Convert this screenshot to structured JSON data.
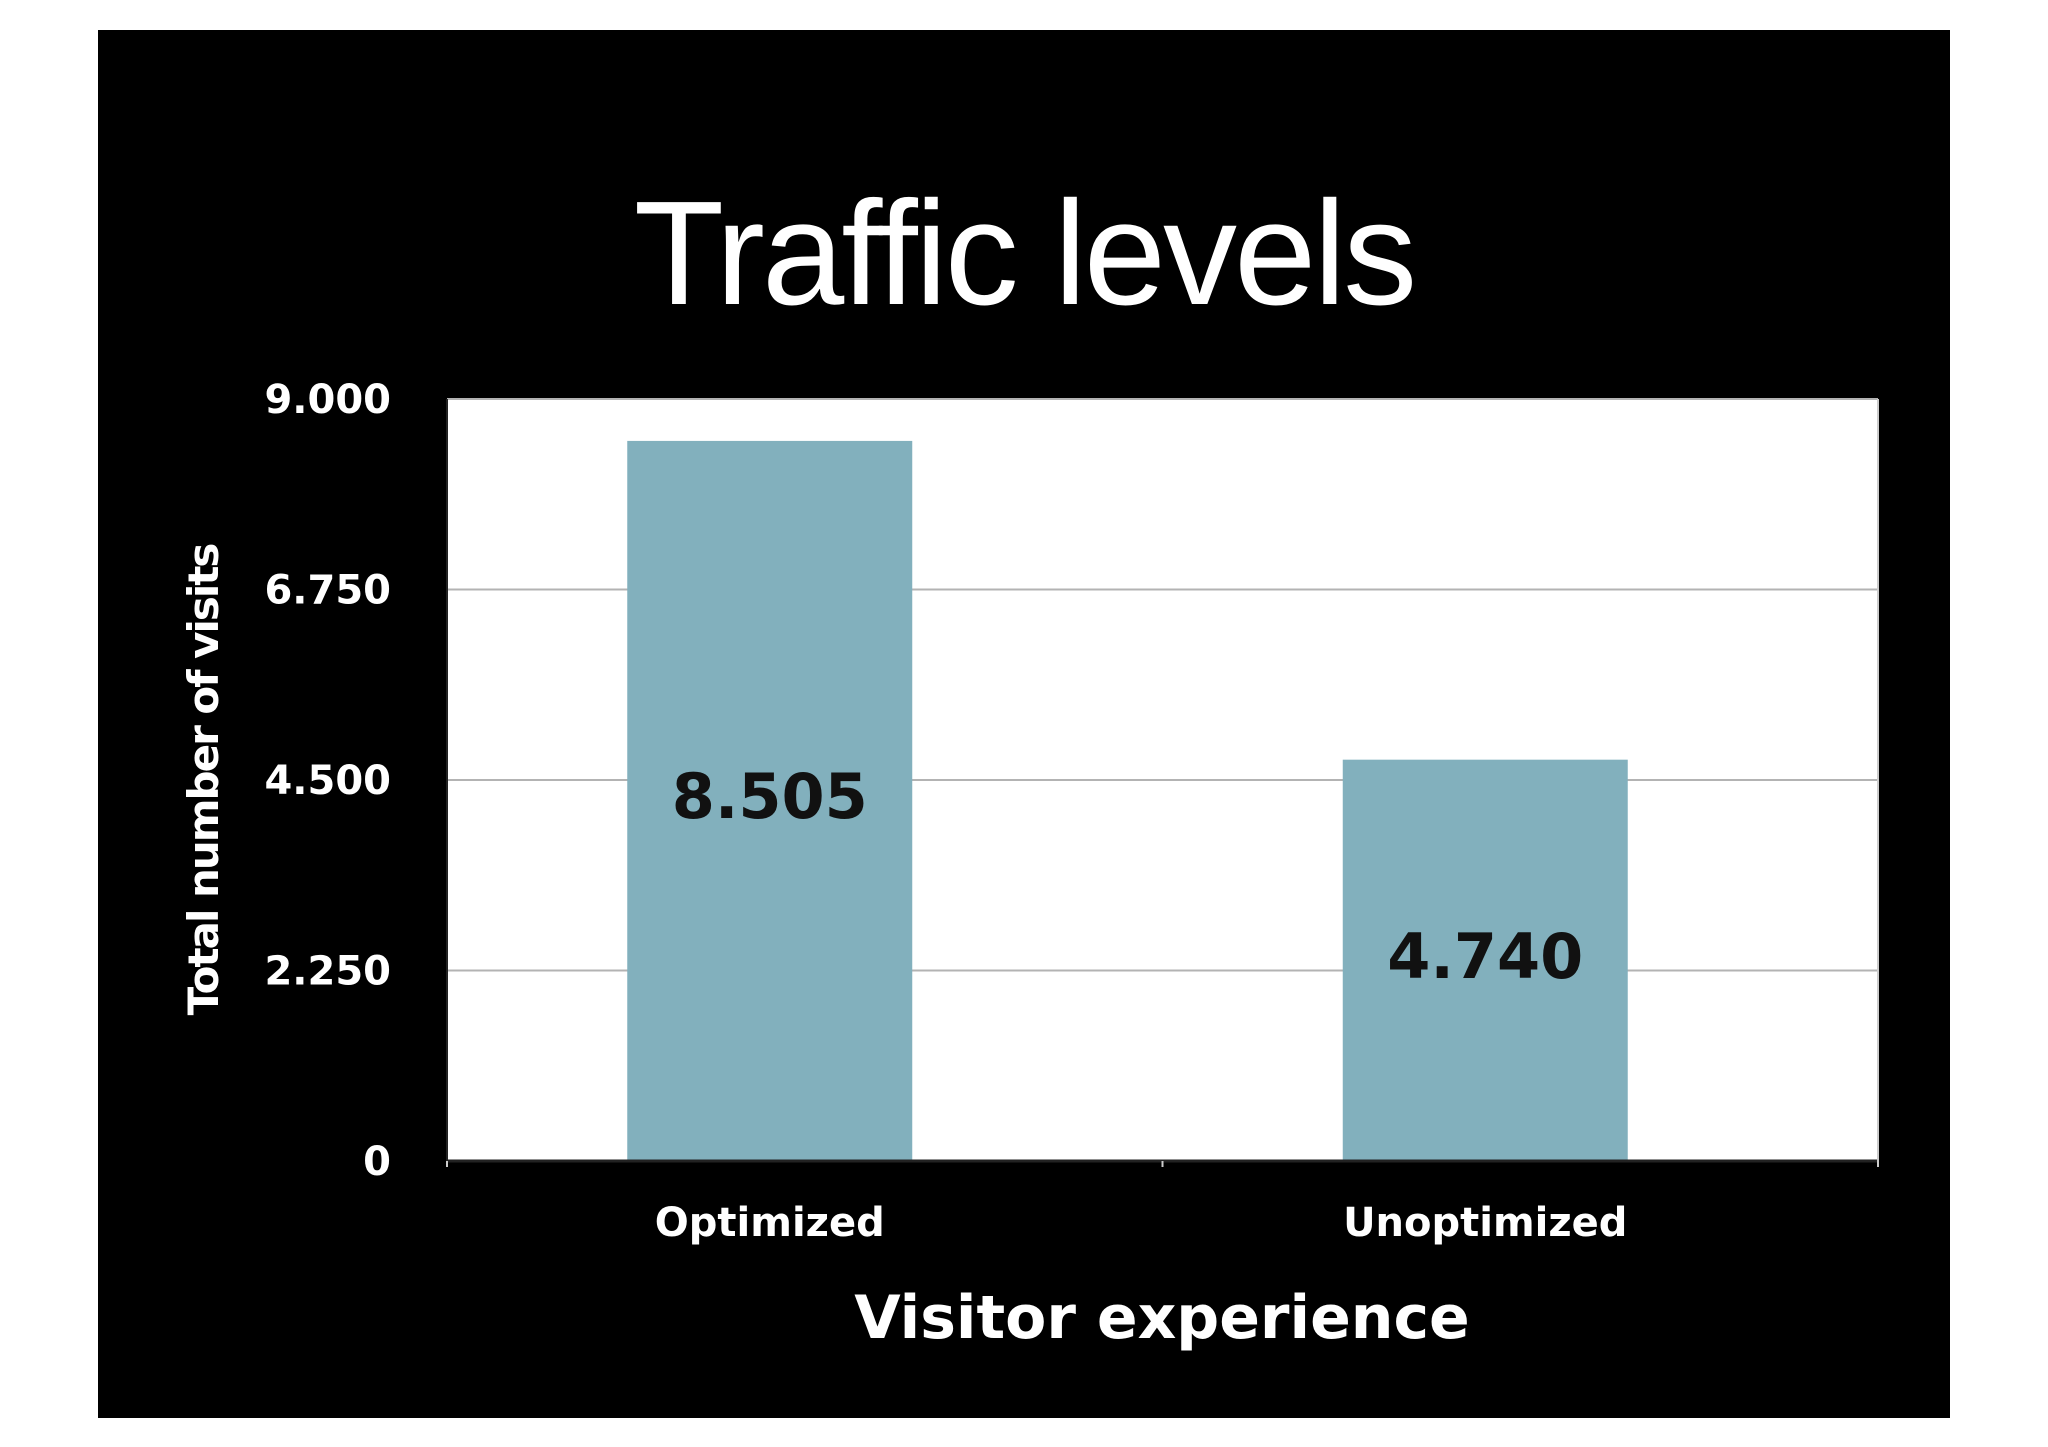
{
  "chart_data": {
    "type": "bar",
    "title": "Traffic levels",
    "categories": [
      "Optimized",
      "Unoptimized"
    ],
    "values": [
      8505,
      4740
    ],
    "value_labels": [
      "8.505",
      "4.740"
    ],
    "xlabel": "Visitor experience",
    "ylabel": "Total number of visits",
    "ylim": [
      0,
      9000
    ],
    "yticks": [
      0,
      2250,
      4500,
      6750,
      9000
    ],
    "ytick_labels": [
      "0",
      "2.250",
      "4.500",
      "6.750",
      "9.000"
    ],
    "grid": true,
    "legend": "none",
    "colors": {
      "background": "#000000",
      "plot_area": "#ffffff",
      "bar": "#82b0bd",
      "gridline": "#b3b3b3",
      "text": "#ffffff",
      "data_label": "#111111"
    }
  }
}
